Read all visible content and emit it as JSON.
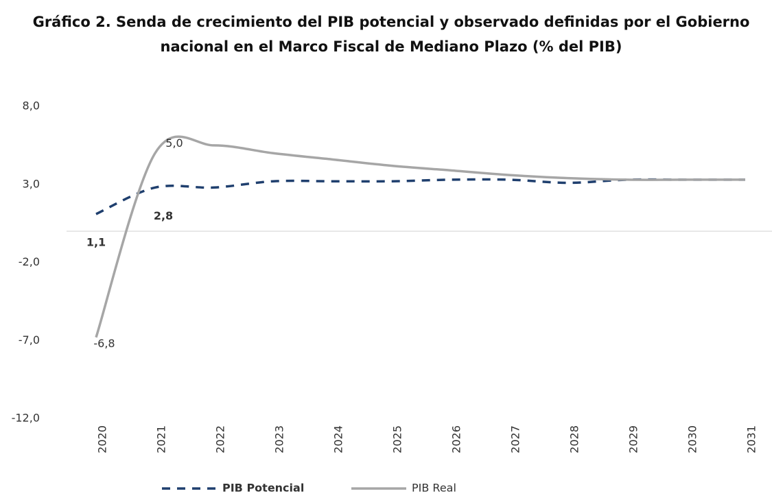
{
  "chart_data": {
    "type": "line",
    "title": "Gráfico 2. Senda de crecimiento del PIB potencial y observado definidas por el Gobierno nacional en el Marco Fiscal de Mediano Plazo (% del PIB)",
    "categories": [
      "2020",
      "2021",
      "2022",
      "2023",
      "2024",
      "2025",
      "2026",
      "2027",
      "2028",
      "2029",
      "2030",
      "2031"
    ],
    "series": [
      {
        "name": "PIB Potencial",
        "color": "#1f3f6e",
        "dash": true,
        "values": [
          1.1,
          2.8,
          2.8,
          3.2,
          3.2,
          3.2,
          3.3,
          3.3,
          3.1,
          3.3,
          3.3,
          3.3
        ],
        "value_labels": [
          "1,1",
          "2,8",
          null,
          null,
          null,
          null,
          null,
          null,
          null,
          null,
          null,
          null
        ]
      },
      {
        "name": "PIB Real",
        "color": "#a6a6a6",
        "dash": false,
        "values": [
          -6.8,
          5.0,
          5.5,
          5.0,
          4.6,
          4.2,
          3.9,
          3.6,
          3.4,
          3.3,
          3.3,
          3.3
        ],
        "value_labels": [
          "-6,8",
          "5,0",
          null,
          null,
          null,
          null,
          null,
          null,
          null,
          null,
          null,
          null
        ]
      }
    ],
    "ylim": [
      -12,
      8
    ],
    "yticks": [
      {
        "value": 8,
        "label": "8,0"
      },
      {
        "value": 3,
        "label": "3,0"
      },
      {
        "value": -2,
        "label": "-2,0"
      },
      {
        "value": -7,
        "label": "-7,0"
      },
      {
        "value": -12,
        "label": "-12,0"
      }
    ],
    "grid": false,
    "legend": "bottom"
  }
}
